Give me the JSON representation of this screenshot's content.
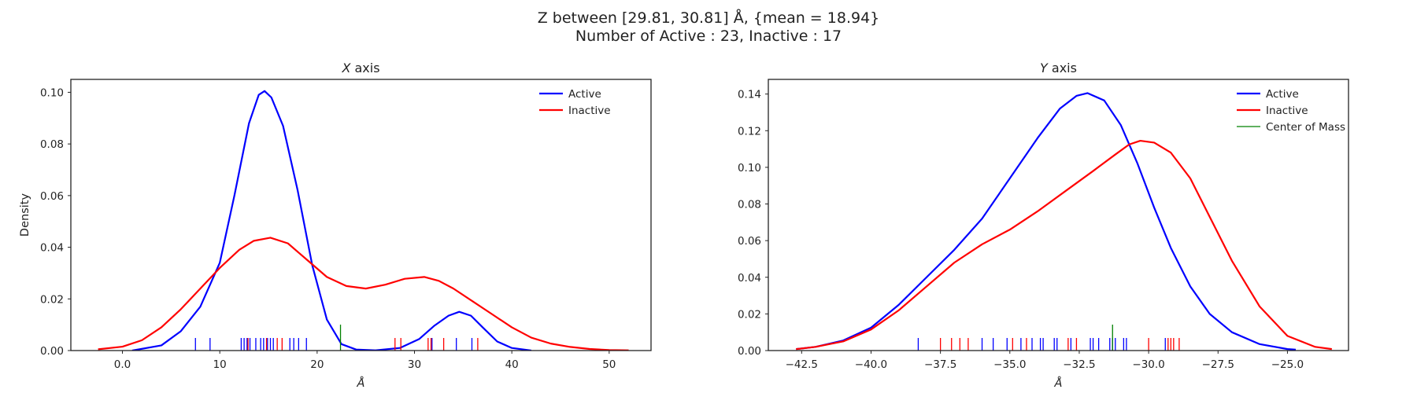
{
  "suptitle": {
    "line1": "Z between [29.81, 30.81] Å, {mean = 18.94}",
    "line2": "Number of Active : 23, Inactive : 17"
  },
  "colors": {
    "active": "#0000ff",
    "inactive": "#ff0000",
    "center_of_mass": "#008000"
  },
  "chart_data": [
    {
      "type": "line",
      "subtype": "kde-with-rugplot",
      "title": "X axis",
      "xlabel": "Å",
      "ylabel": "Density",
      "xlim": [
        -5.3,
        54.3
      ],
      "ylim": [
        0,
        0.105
      ],
      "xticks": [
        0,
        10,
        20,
        30,
        40,
        50
      ],
      "yticks": [
        0.0,
        0.02,
        0.04,
        0.06,
        0.08,
        0.1
      ],
      "ytick_decimals": 2,
      "grid": false,
      "legend": {
        "position": "top-right",
        "entries": [
          "Active",
          "Inactive"
        ]
      },
      "series": [
        {
          "name": "Active",
          "color": "#0000ff",
          "x": [
            1,
            4,
            6,
            8,
            10,
            11.5,
            13,
            14,
            14.6,
            15.3,
            16.5,
            18,
            19.5,
            21,
            22.5,
            24,
            26,
            28.5,
            30.5,
            32,
            33.5,
            34.6,
            35.8,
            37,
            38.5,
            40,
            42
          ],
          "y": [
            0.0,
            0.002,
            0.0075,
            0.017,
            0.034,
            0.06,
            0.088,
            0.099,
            0.1005,
            0.098,
            0.087,
            0.062,
            0.033,
            0.012,
            0.0025,
            0.0004,
            0.0001,
            0.001,
            0.0045,
            0.0095,
            0.0135,
            0.015,
            0.0135,
            0.009,
            0.0035,
            0.001,
            0.0
          ]
        },
        {
          "name": "Inactive",
          "color": "#ff0000",
          "x": [
            -2.5,
            0,
            2,
            4,
            6,
            8,
            10,
            12,
            13.5,
            15.2,
            17,
            19,
            21,
            23,
            25,
            27,
            29,
            31,
            32.5,
            34,
            36,
            38,
            40,
            42,
            44,
            46,
            48,
            50,
            52
          ],
          "y": [
            0.0005,
            0.0015,
            0.004,
            0.009,
            0.016,
            0.024,
            0.032,
            0.039,
            0.0425,
            0.0437,
            0.0415,
            0.035,
            0.0285,
            0.025,
            0.024,
            0.0255,
            0.0278,
            0.0285,
            0.027,
            0.024,
            0.019,
            0.014,
            0.009,
            0.005,
            0.0027,
            0.0014,
            0.0006,
            0.0002,
            0.0001
          ]
        }
      ],
      "rug": {
        "Active": [
          7.5,
          9.0,
          12.2,
          12.5,
          12.8,
          13.1,
          13.7,
          14.2,
          14.5,
          14.9,
          15.2,
          15.5,
          17.2,
          17.6,
          18.1,
          18.9,
          31.8,
          34.3,
          35.9
        ],
        "Inactive": [
          12.9,
          14.8,
          15.9,
          16.4,
          28.0,
          28.6,
          31.4,
          31.7,
          33.0,
          36.5
        ],
        "Center of Mass": [
          22.4
        ]
      }
    },
    {
      "type": "line",
      "subtype": "kde-with-rugplot",
      "title": "Y axis",
      "xlabel": "Å",
      "ylabel": "",
      "xlim": [
        -43.7,
        -22.8
      ],
      "ylim": [
        0,
        0.148
      ],
      "xticks": [
        -42.5,
        -40.0,
        -37.5,
        -35.0,
        -32.5,
        -30.0,
        -27.5,
        -25.0
      ],
      "yticks": [
        0.0,
        0.02,
        0.04,
        0.06,
        0.08,
        0.1,
        0.12,
        0.14
      ],
      "ytick_decimals": 2,
      "grid": false,
      "legend": {
        "position": "top-right",
        "entries": [
          "Active",
          "Inactive",
          "Center of Mass"
        ]
      },
      "series": [
        {
          "name": "Active",
          "color": "#0000ff",
          "x": [
            -42.7,
            -42,
            -41,
            -40,
            -39,
            -38,
            -37,
            -36,
            -35,
            -34,
            -33.2,
            -32.6,
            -32.2,
            -31.6,
            -31,
            -30.4,
            -29.8,
            -29.2,
            -28.5,
            -27.8,
            -27,
            -26,
            -25,
            -24.7
          ],
          "y": [
            0.0008,
            0.002,
            0.0055,
            0.0125,
            0.025,
            0.04,
            0.055,
            0.072,
            0.094,
            0.116,
            0.132,
            0.139,
            0.1405,
            0.1365,
            0.123,
            0.102,
            0.078,
            0.056,
            0.035,
            0.02,
            0.01,
            0.0035,
            0.0008,
            0.0005
          ]
        },
        {
          "name": "Inactive",
          "color": "#ff0000",
          "x": [
            -42.7,
            -42,
            -41,
            -40,
            -39,
            -38,
            -37,
            -36,
            -35,
            -34,
            -33,
            -32,
            -31.2,
            -30.7,
            -30.3,
            -29.8,
            -29.2,
            -28.5,
            -27.8,
            -27,
            -26,
            -25,
            -24,
            -23.4
          ],
          "y": [
            0.0008,
            0.002,
            0.005,
            0.0115,
            0.022,
            0.035,
            0.048,
            0.058,
            0.066,
            0.076,
            0.087,
            0.098,
            0.107,
            0.1125,
            0.1145,
            0.1135,
            0.108,
            0.094,
            0.073,
            0.049,
            0.024,
            0.008,
            0.002,
            0.0008
          ]
        }
      ],
      "rug": {
        "Active": [
          -38.3,
          -36.0,
          -35.6,
          -35.1,
          -34.6,
          -34.2,
          -33.9,
          -33.8,
          -33.4,
          -33.3,
          -32.8,
          -32.1,
          -32.0,
          -31.8,
          -31.4,
          -31.3,
          -31.2,
          -30.9,
          -30.8,
          -29.4
        ],
        "Inactive": [
          -37.5,
          -37.1,
          -36.8,
          -36.5,
          -34.9,
          -34.4,
          -32.9,
          -32.6,
          -30.0,
          -29.3,
          -29.2,
          -29.1,
          -28.9
        ],
        "Center of Mass": [
          -31.3
        ]
      }
    }
  ]
}
